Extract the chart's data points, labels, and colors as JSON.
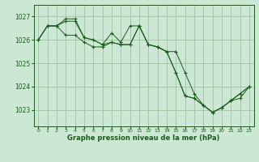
{
  "background_color": "#cce8d4",
  "grid_color": "#99bb99",
  "line_color": "#1a5c1a",
  "xlabel": "Graphe pression niveau de la mer (hPa)",
  "x_ticks": [
    0,
    1,
    2,
    3,
    4,
    5,
    6,
    7,
    8,
    9,
    10,
    11,
    12,
    13,
    14,
    15,
    16,
    17,
    18,
    19,
    20,
    21,
    22,
    23
  ],
  "y_ticks": [
    1023,
    1024,
    1025,
    1026,
    1027
  ],
  "ylim": [
    1022.3,
    1027.5
  ],
  "xlim": [
    -0.5,
    23.5
  ],
  "series": [
    [
      1026.0,
      1026.6,
      1026.6,
      1026.8,
      1026.8,
      1026.1,
      1026.0,
      1025.8,
      1025.9,
      1025.8,
      1025.8,
      1026.6,
      1025.8,
      1025.7,
      1025.5,
      1025.5,
      1024.6,
      1023.7,
      1023.2,
      1022.9,
      1023.1,
      1023.4,
      1023.5,
      1024.0
    ],
    [
      1026.0,
      1026.6,
      1026.6,
      1026.9,
      1026.9,
      1026.1,
      1026.0,
      1025.8,
      1026.3,
      1025.9,
      1026.6,
      1026.6,
      1025.8,
      1025.7,
      1025.5,
      1024.6,
      1023.6,
      1023.5,
      1023.2,
      1022.9,
      1023.1,
      1023.4,
      1023.7,
      1024.0
    ],
    [
      1026.0,
      1026.6,
      1026.6,
      1026.2,
      1026.2,
      1025.9,
      1025.7,
      1025.7,
      1025.9,
      1025.8,
      1025.8,
      1026.6,
      1025.8,
      1025.7,
      1025.5,
      1024.6,
      1023.6,
      1023.5,
      1023.2,
      1022.9,
      1023.1,
      1023.4,
      1023.7,
      1024.0
    ]
  ]
}
